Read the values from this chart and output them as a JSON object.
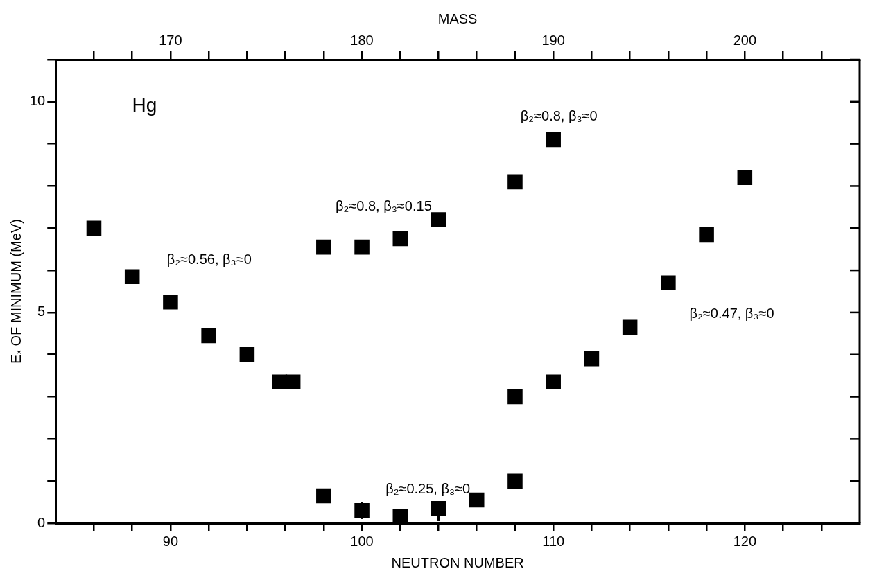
{
  "chart_data": {
    "type": "scatter",
    "xlabel": "NEUTRON NUMBER",
    "ylabel": "Eₓ OF MINIMUM (MeV)",
    "x2label": "MASS",
    "xlim": [
      84,
      126
    ],
    "ylim": [
      0,
      11
    ],
    "x2lim": [
      164,
      206
    ],
    "xticks": [
      {
        "value": 86,
        "label": null
      },
      {
        "value": 88,
        "label": null
      },
      90,
      {
        "value": 92,
        "label": null
      },
      {
        "value": 94,
        "label": null
      },
      {
        "value": 96,
        "label": null
      },
      {
        "value": 98,
        "label": null
      },
      100,
      {
        "value": 102,
        "label": null
      },
      {
        "value": 104,
        "label": null
      },
      {
        "value": 106,
        "label": null
      },
      {
        "value": 108,
        "label": null
      },
      110,
      {
        "value": 112,
        "label": null
      },
      {
        "value": 114,
        "label": null
      },
      {
        "value": 116,
        "label": null
      },
      {
        "value": 118,
        "label": null
      },
      120,
      {
        "value": 122,
        "label": null
      },
      {
        "value": 124,
        "label": null
      }
    ],
    "x2ticks": [
      {
        "value": 166,
        "label": null
      },
      {
        "value": 168,
        "label": null
      },
      170,
      {
        "value": 172,
        "label": null
      },
      {
        "value": 174,
        "label": null
      },
      {
        "value": 176,
        "label": null
      },
      {
        "value": 178,
        "label": null
      },
      180,
      {
        "value": 182,
        "label": null
      },
      {
        "value": 184,
        "label": null
      },
      {
        "value": 186,
        "label": null
      },
      {
        "value": 188,
        "label": null
      },
      190,
      {
        "value": 192,
        "label": null
      },
      {
        "value": 194,
        "label": null
      },
      {
        "value": 196,
        "label": null
      },
      {
        "value": 198,
        "label": null
      },
      200,
      {
        "value": 202,
        "label": null
      },
      {
        "value": 204,
        "label": null
      }
    ],
    "yticks": [
      0,
      {
        "value": 1,
        "label": null
      },
      {
        "value": 2,
        "label": null
      },
      {
        "value": 3,
        "label": null
      },
      {
        "value": 4,
        "label": null
      },
      5,
      {
        "value": 6,
        "label": null
      },
      {
        "value": 7,
        "label": null
      },
      {
        "value": 8,
        "label": null
      },
      {
        "value": 9,
        "label": null
      },
      10,
      {
        "value": 11,
        "label": null
      }
    ],
    "grid": false,
    "legend": false,
    "marker": "square",
    "series": [
      {
        "color": "#000000",
        "x": [
          86,
          88,
          90,
          92,
          94,
          95.7,
          96.4,
          98,
          98,
          100,
          100,
          102,
          102,
          104,
          104,
          106,
          108,
          108,
          108,
          110,
          110,
          112,
          114,
          116,
          118,
          120
        ],
        "values": [
          7.0,
          5.85,
          5.25,
          4.45,
          4.0,
          3.35,
          3.35,
          6.55,
          0.65,
          6.55,
          0.3,
          6.75,
          0.15,
          7.2,
          0.35,
          0.55,
          8.1,
          3.0,
          1.0,
          9.1,
          3.35,
          3.9,
          4.65,
          5.7,
          6.85,
          8.2
        ],
        "errors": [
          null,
          null,
          null,
          null,
          null,
          null,
          null,
          null,
          null,
          null,
          0.2,
          null,
          0.1,
          null,
          [
            0.05,
            0.35
          ],
          null,
          null,
          null,
          null,
          null,
          null,
          null,
          null,
          null,
          null,
          null
        ]
      }
    ],
    "annotations": [
      "Hg",
      "β₂≈0.56, β₃≈0",
      "β₂≈0.8, β₃≈0.15",
      "β₂≈0.8, β₃≈0",
      "β₂≈0.25, β₃≈0",
      "β₂≈0.47, β₃≈0"
    ]
  }
}
